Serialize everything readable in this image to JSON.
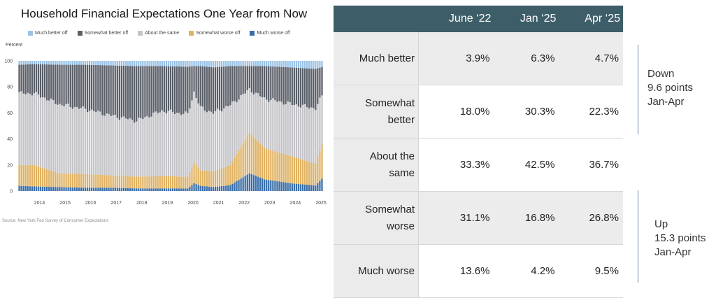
{
  "chart": {
    "title": "Household Financial Expectations One Year from Now",
    "y_unit_label": "Percent",
    "source": "Source: New York Fed Survey of Consumer Expectations"
  },
  "chart_data": {
    "type": "bar",
    "stacked": true,
    "normalized_to": 100,
    "title": "Household Financial Expectations One Year from Now",
    "ylabel": "Percent",
    "xlabel": "",
    "ylim": [
      0,
      100
    ],
    "yticks": [
      0,
      20,
      40,
      60,
      80,
      100
    ],
    "xticks": [
      "2014",
      "2015",
      "2016",
      "2017",
      "2018",
      "2019",
      "2020",
      "2021",
      "2022",
      "2023",
      "2024",
      "2025"
    ],
    "x_range": [
      "2013-06",
      "2025-04"
    ],
    "frequency": "monthly",
    "legend_position": "top",
    "grid": false,
    "series_order_bottom_to_top": [
      "Much worse off",
      "Somewhat worse off",
      "About the same",
      "Somewhat better off",
      "Much better off"
    ],
    "series": [
      {
        "name": "Much better off",
        "color": "#9cc3e6"
      },
      {
        "name": "Somewhat better off",
        "color": "#5a5f68"
      },
      {
        "name": "About the same",
        "color": "#c4c4c8"
      },
      {
        "name": "Somewhat worse off",
        "color": "#dfb264"
      },
      {
        "name": "Much worse off",
        "color": "#3a6ea8"
      }
    ],
    "anchors": [
      {
        "x": "2013-06",
        "values": [
          4.0,
          16.0,
          55.0,
          22.0,
          3.0
        ]
      },
      {
        "x": "2014-01",
        "values": [
          3.5,
          16.5,
          55.0,
          22.5,
          2.5
        ]
      },
      {
        "x": "2015-01",
        "values": [
          3.0,
          10.5,
          53.0,
          30.5,
          3.0
        ]
      },
      {
        "x": "2016-01",
        "values": [
          2.5,
          10.5,
          50.0,
          34.0,
          3.0
        ]
      },
      {
        "x": "2017-01",
        "values": [
          2.5,
          9.5,
          46.0,
          38.5,
          3.5
        ]
      },
      {
        "x": "2018-01",
        "values": [
          2.0,
          9.0,
          43.0,
          42.0,
          4.0
        ]
      },
      {
        "x": "2019-01",
        "values": [
          2.0,
          9.5,
          50.0,
          34.5,
          4.0
        ]
      },
      {
        "x": "2020-01",
        "values": [
          2.0,
          9.0,
          48.0,
          36.5,
          4.5
        ]
      },
      {
        "x": "2020-04",
        "values": [
          6.0,
          16.0,
          54.0,
          20.0,
          4.0
        ]
      },
      {
        "x": "2020-07",
        "values": [
          4.0,
          12.0,
          48.0,
          32.0,
          4.0
        ]
      },
      {
        "x": "2021-01",
        "values": [
          3.0,
          12.0,
          45.0,
          35.0,
          5.0
        ]
      },
      {
        "x": "2021-09",
        "values": [
          4.5,
          15.5,
          46.0,
          30.0,
          4.0
        ]
      },
      {
        "x": "2022-06",
        "values": [
          13.6,
          31.1,
          33.3,
          18.0,
          3.9
        ]
      },
      {
        "x": "2023-01",
        "values": [
          9.0,
          24.0,
          38.0,
          25.0,
          4.0
        ]
      },
      {
        "x": "2024-01",
        "values": [
          6.0,
          21.0,
          40.0,
          28.0,
          5.0
        ]
      },
      {
        "x": "2025-01",
        "values": [
          4.2,
          16.8,
          42.5,
          30.3,
          6.3
        ]
      },
      {
        "x": "2025-04",
        "values": [
          9.5,
          26.8,
          36.7,
          22.3,
          4.7
        ]
      }
    ]
  },
  "table": {
    "columns": [
      "June ‘22",
      "Jan ‘25",
      "Apr ‘25"
    ],
    "rows": [
      {
        "label_l1": "Much better",
        "label_l2": "",
        "values": [
          "3.9%",
          "6.3%",
          "4.7%"
        ]
      },
      {
        "label_l1": "Somewhat",
        "label_l2": "better",
        "values": [
          "18.0%",
          "30.3%",
          "22.3%"
        ]
      },
      {
        "label_l1": "About the",
        "label_l2": "same",
        "values": [
          "33.3%",
          "42.5%",
          "36.7%"
        ]
      },
      {
        "label_l1": "Somewhat",
        "label_l2": "worse",
        "values": [
          "31.1%",
          "16.8%",
          "26.8%"
        ]
      },
      {
        "label_l1": "Much worse",
        "label_l2": "",
        "values": [
          "13.6%",
          "4.2%",
          "9.5%"
        ]
      }
    ]
  },
  "annotations": {
    "down": {
      "line1": "Down",
      "line2": "9.6 points",
      "line3": "Jan-Apr"
    },
    "up": {
      "line1": "Up",
      "line2": "15.3 points",
      "line3": "Jan-Apr"
    }
  },
  "colors": {
    "table_header": "#3d5e68",
    "bracket": "#6c86a8"
  }
}
